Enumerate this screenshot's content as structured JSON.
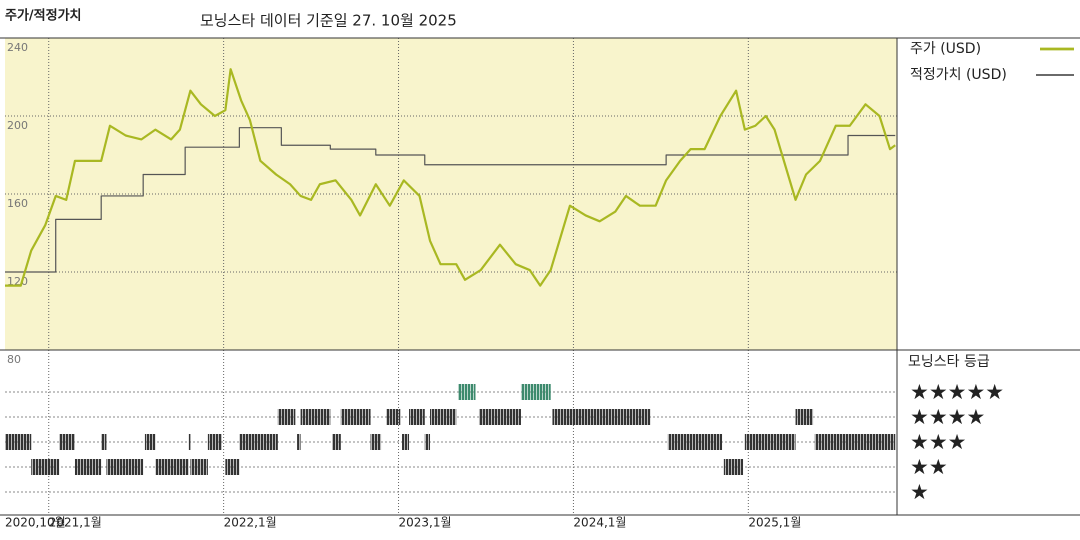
{
  "chart_data": {
    "type": "line",
    "title": "주가/적정가치",
    "subtitle": "모닝스타 데이터 기준일 27. 10월 2025",
    "background": "#f8f4cc",
    "xlim": [
      2020.75,
      2025.85
    ],
    "xticks": [
      {
        "value": 2020.75,
        "label": "2020,10월"
      },
      {
        "value": 2021,
        "label": "2021,1월"
      },
      {
        "value": 2022,
        "label": "2022,1월"
      },
      {
        "value": 2023,
        "label": "2023,1월"
      },
      {
        "value": 2024,
        "label": "2024,1월"
      },
      {
        "value": 2025,
        "label": "2025,1월"
      }
    ],
    "ylim": [
      80,
      240
    ],
    "yticks": [
      80,
      120,
      160,
      200,
      240
    ],
    "grid": true,
    "series": [
      {
        "name": "주가 (USD)",
        "color": "#a9b822",
        "width": 2.2,
        "step": false,
        "x": [
          2020.75,
          2020.84,
          2020.9,
          2020.98,
          2021.04,
          2021.1,
          2021.15,
          2021.24,
          2021.3,
          2021.35,
          2021.44,
          2021.53,
          2021.61,
          2021.7,
          2021.75,
          2021.81,
          2021.87,
          2021.95,
          2022.01,
          2022.04,
          2022.1,
          2022.15,
          2022.21,
          2022.3,
          2022.38,
          2022.44,
          2022.5,
          2022.55,
          2022.64,
          2022.73,
          2022.78,
          2022.87,
          2022.95,
          2023.03,
          2023.12,
          2023.18,
          2023.24,
          2023.33,
          2023.38,
          2023.47,
          2023.58,
          2023.67,
          2023.75,
          2023.81,
          2023.87,
          2023.93,
          2023.98,
          2024.07,
          2024.15,
          2024.24,
          2024.3,
          2024.38,
          2024.47,
          2024.53,
          2024.61,
          2024.67,
          2024.75,
          2024.84,
          2024.93,
          2024.98,
          2025.04,
          2025.1,
          2025.15,
          2025.21,
          2025.27,
          2025.33,
          2025.41,
          2025.5,
          2025.58,
          2025.67,
          2025.75,
          2025.81,
          2025.84
        ],
        "values": [
          113,
          113,
          131,
          144,
          159,
          157,
          177,
          177,
          177,
          195,
          190,
          188,
          193,
          188,
          193,
          213,
          206,
          200,
          203,
          224,
          208,
          198,
          177,
          170,
          165,
          159,
          157,
          165,
          167,
          157,
          149,
          165,
          154,
          167,
          159,
          136,
          124,
          124,
          116,
          121,
          134,
          124,
          121,
          113,
          121,
          139,
          154,
          149,
          146,
          151,
          159,
          154,
          154,
          167,
          177,
          183,
          183,
          200,
          213,
          193,
          195,
          200,
          193,
          175,
          157,
          170,
          177,
          195,
          195,
          206,
          200,
          183,
          185
        ]
      },
      {
        "name": "적정가치 (USD)",
        "color": "#555555",
        "width": 1.2,
        "step": true,
        "x": [
          2020.75,
          2021.04,
          2021.3,
          2021.54,
          2021.78,
          2022.09,
          2022.33,
          2022.61,
          2022.87,
          2023.15,
          2024.53,
          2025.57,
          2025.84
        ],
        "values": [
          120,
          147,
          159,
          170,
          184,
          194,
          185,
          183,
          180,
          175,
          180,
          190,
          190
        ]
      }
    ],
    "rating_title": "모닝스타 등급",
    "rating_rows": [
      {
        "stars": 5,
        "label": "★★★★★"
      },
      {
        "stars": 4,
        "label": "★★★★"
      },
      {
        "stars": 3,
        "label": "★★★"
      },
      {
        "stars": 2,
        "label": "★★"
      },
      {
        "stars": 1,
        "label": "★"
      }
    ],
    "rating_colors": [
      "#333333",
      "#333333",
      "#333333",
      "#333333",
      "#3d8a6d"
    ],
    "ratings": [
      [
        2020.75,
        2020.9,
        3
      ],
      [
        2020.9,
        2021.06,
        2
      ],
      [
        2021.06,
        2021.15,
        3
      ],
      [
        2021.15,
        2021.3,
        2
      ],
      [
        2021.3,
        2021.33,
        3
      ],
      [
        2021.33,
        2021.54,
        2
      ],
      [
        2021.55,
        2021.61,
        3
      ],
      [
        2021.61,
        2021.8,
        2
      ],
      [
        2021.8,
        2021.81,
        3
      ],
      [
        2021.81,
        2021.91,
        2
      ],
      [
        2021.91,
        2021.99,
        3
      ],
      [
        2022.01,
        2022.09,
        2
      ],
      [
        2022.09,
        2022.31,
        3
      ],
      [
        2022.31,
        2022.41,
        4
      ],
      [
        2022.42,
        2022.44,
        3
      ],
      [
        2022.44,
        2022.61,
        4
      ],
      [
        2022.62,
        2022.67,
        3
      ],
      [
        2022.67,
        2022.84,
        4
      ],
      [
        2022.84,
        2022.9,
        3
      ],
      [
        2022.93,
        2023.01,
        4
      ],
      [
        2023.02,
        2023.06,
        3
      ],
      [
        2023.06,
        2023.15,
        4
      ],
      [
        2023.15,
        2023.18,
        3
      ],
      [
        2023.18,
        2023.33,
        4
      ],
      [
        2023.34,
        2023.44,
        5
      ],
      [
        2023.46,
        2023.7,
        4
      ],
      [
        2023.7,
        2023.87,
        5
      ],
      [
        2023.88,
        2024.44,
        4
      ],
      [
        2024.54,
        2024.85,
        3
      ],
      [
        2024.86,
        2024.97,
        2
      ],
      [
        2024.98,
        2025.27,
        3
      ],
      [
        2025.27,
        2025.37,
        4
      ],
      [
        2025.38,
        2025.84,
        3
      ]
    ]
  }
}
